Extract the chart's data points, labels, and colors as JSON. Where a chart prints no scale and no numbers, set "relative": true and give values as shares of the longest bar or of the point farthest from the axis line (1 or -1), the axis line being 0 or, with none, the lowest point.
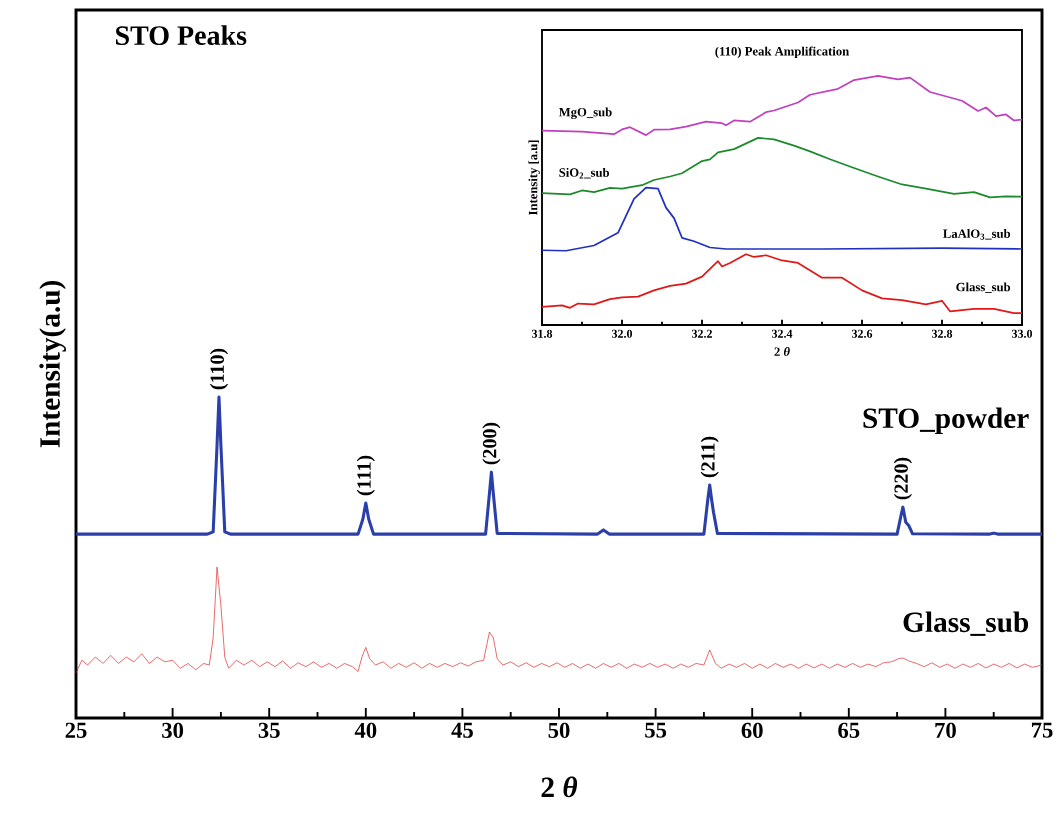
{
  "chart_data": [
    {
      "type": "line",
      "xlabel": "2 *θ*",
      "ylabel": "Intensity(a.u)",
      "relative": true,
      "tick_labels": "x",
      "xlim": [
        25,
        75
      ],
      "xticks": [
        25,
        30,
        35,
        40,
        45,
        50,
        55,
        60,
        65,
        70,
        75
      ],
      "series": [
        {
          "name": "STO_powder",
          "color": "#2b3fa8",
          "x": [
            25,
            31.8,
            32.1,
            32.3,
            32.4,
            32.5,
            32.7,
            33,
            39.6,
            39.85,
            40.0,
            40.15,
            40.4,
            46.2,
            46.4,
            46.5,
            46.6,
            46.8,
            52.0,
            52.3,
            52.6,
            57.5,
            57.7,
            57.8,
            57.9,
            58.0,
            58.2,
            67.5,
            67.7,
            67.8,
            67.95,
            68.1,
            68.3,
            72.3,
            72.5,
            72.7,
            75
          ],
          "values": [
            0.573,
            0.573,
            0.58,
            0.85,
            1.0,
            0.85,
            0.58,
            0.573,
            0.573,
            0.62,
            0.67,
            0.62,
            0.573,
            0.573,
            0.7,
            0.766,
            0.7,
            0.575,
            0.573,
            0.586,
            0.573,
            0.573,
            0.68,
            0.726,
            0.68,
            0.64,
            0.575,
            0.573,
            0.63,
            0.657,
            0.61,
            0.6,
            0.574,
            0.573,
            0.576,
            0.573,
            0.573
          ]
        },
        {
          "name": "Glass_sub",
          "color": "#e02020",
          "x": [
            25,
            25.3,
            25.6,
            26,
            26.4,
            26.8,
            27.2,
            27.6,
            28,
            28.4,
            28.8,
            29.2,
            29.6,
            30,
            30.4,
            30.8,
            31.2,
            31.6,
            31.9,
            32.1,
            32.3,
            32.5,
            32.7,
            32.9,
            33.3,
            33.7,
            34.1,
            34.5,
            34.9,
            35.3,
            35.7,
            36.1,
            36.5,
            36.9,
            37.3,
            37.7,
            38.1,
            38.5,
            38.9,
            39.3,
            39.6,
            39.8,
            40.0,
            40.2,
            40.5,
            40.9,
            41.3,
            41.7,
            42.1,
            42.5,
            42.9,
            43.3,
            43.7,
            44.1,
            44.5,
            44.9,
            45.3,
            45.7,
            46.1,
            46.4,
            46.6,
            46.8,
            47.1,
            47.5,
            47.9,
            48.3,
            48.7,
            49.1,
            49.5,
            49.9,
            50.3,
            50.7,
            51.1,
            51.5,
            51.9,
            52.3,
            52.7,
            53.1,
            53.5,
            53.9,
            54.3,
            54.7,
            55.1,
            55.5,
            55.9,
            56.3,
            56.7,
            57.1,
            57.5,
            57.8,
            58.1,
            58.4,
            58.8,
            59.2,
            59.6,
            60,
            60.4,
            60.8,
            61.2,
            61.6,
            62,
            62.4,
            62.8,
            63.2,
            63.6,
            64,
            64.4,
            64.8,
            65.2,
            65.6,
            66,
            66.4,
            66.8,
            67.2,
            67.6,
            67.8,
            68.1,
            68.5,
            68.9,
            69.3,
            69.7,
            70.1,
            70.5,
            70.9,
            71.3,
            71.7,
            72.1,
            72.5,
            72.9,
            73.3,
            73.7,
            74.1,
            74.5,
            75
          ],
          "values": [
            0.14,
            0.18,
            0.165,
            0.19,
            0.17,
            0.195,
            0.17,
            0.19,
            0.175,
            0.2,
            0.17,
            0.19,
            0.175,
            0.18,
            0.155,
            0.17,
            0.15,
            0.17,
            0.165,
            0.25,
            0.47,
            0.35,
            0.19,
            0.155,
            0.18,
            0.165,
            0.18,
            0.16,
            0.175,
            0.16,
            0.178,
            0.155,
            0.172,
            0.16,
            0.175,
            0.158,
            0.17,
            0.155,
            0.17,
            0.16,
            0.145,
            0.19,
            0.22,
            0.185,
            0.165,
            0.175,
            0.155,
            0.17,
            0.158,
            0.172,
            0.155,
            0.17,
            0.158,
            0.17,
            0.16,
            0.172,
            0.162,
            0.175,
            0.18,
            0.268,
            0.25,
            0.185,
            0.165,
            0.175,
            0.16,
            0.172,
            0.158,
            0.17,
            0.16,
            0.172,
            0.158,
            0.17,
            0.155,
            0.168,
            0.155,
            0.17,
            0.158,
            0.17,
            0.155,
            0.168,
            0.158,
            0.17,
            0.158,
            0.168,
            0.155,
            0.168,
            0.158,
            0.17,
            0.165,
            0.212,
            0.17,
            0.155,
            0.168,
            0.158,
            0.17,
            0.155,
            0.168,
            0.155,
            0.17,
            0.158,
            0.168,
            0.155,
            0.168,
            0.156,
            0.168,
            0.155,
            0.168,
            0.158,
            0.17,
            0.158,
            0.168,
            0.16,
            0.172,
            0.175,
            0.185,
            0.187,
            0.178,
            0.17,
            0.16,
            0.172,
            0.158,
            0.168,
            0.155,
            0.168,
            0.158,
            0.17,
            0.156,
            0.168,
            0.158,
            0.17,
            0.156,
            0.168,
            0.158,
            0.165
          ]
        }
      ],
      "annotations": [
        "STO Peaks",
        {
          "text": "(110)",
          "x": 32.4,
          "y": 1.0
        },
        {
          "text": "(111)",
          "x": 40.0,
          "y": 0.67
        },
        {
          "text": "(200)",
          "x": 46.5,
          "y": 0.766
        },
        {
          "text": "(211)",
          "x": 57.8,
          "y": 0.726
        },
        {
          "text": "(220)",
          "x": 67.8,
          "y": 0.657
        }
      ]
    },
    {
      "type": "line",
      "title": "(110) Peak Amplification",
      "xlabel": "2 *θ*",
      "ylabel": "Intensity [a.u]",
      "relative": true,
      "tick_labels": "x",
      "xlim": [
        31.8,
        33.0
      ],
      "xticks": [
        31.8,
        {
          "value": 32,
          "label": "32.0"
        },
        32.2,
        32.4,
        32.6,
        32.8,
        {
          "value": 33,
          "label": "33.0"
        }
      ],
      "series": [
        {
          "name": "MgO_sub",
          "color": "#c040c0",
          "x": [
            31.8,
            31.9,
            31.98,
            32.0,
            32.02,
            32.06,
            32.08,
            32.12,
            32.16,
            32.21,
            32.25,
            32.26,
            32.28,
            32.32,
            32.36,
            32.38,
            32.44,
            32.47,
            32.54,
            32.58,
            32.64,
            32.69,
            32.72,
            32.77,
            32.85,
            32.89,
            32.91,
            32.935,
            32.96,
            32.98,
            33.0
          ],
          "values": [
            0.78,
            0.776,
            0.766,
            0.785,
            0.794,
            0.762,
            0.784,
            0.785,
            0.796,
            0.816,
            0.81,
            0.802,
            0.821,
            0.816,
            0.854,
            0.861,
            0.893,
            0.924,
            0.948,
            0.983,
            1.0,
            0.986,
            0.993,
            0.935,
            0.9,
            0.859,
            0.873,
            0.838,
            0.845,
            0.821,
            0.824
          ]
        },
        {
          "name": "SiO$_{2}$_sub",
          "color": "#1a8a2a",
          "x": [
            31.8,
            31.87,
            31.9,
            31.93,
            31.97,
            32.0,
            32.05,
            32.08,
            32.12,
            32.15,
            32.2,
            32.22,
            32.24,
            32.28,
            32.34,
            32.38,
            32.43,
            32.47,
            32.52,
            32.58,
            32.64,
            32.7,
            32.76,
            32.83,
            32.88,
            32.92,
            32.96,
            33.0
          ],
          "values": [
            0.529,
            0.524,
            0.54,
            0.533,
            0.55,
            0.547,
            0.561,
            0.582,
            0.596,
            0.609,
            0.658,
            0.665,
            0.693,
            0.706,
            0.751,
            0.745,
            0.72,
            0.697,
            0.665,
            0.63,
            0.596,
            0.564,
            0.547,
            0.526,
            0.533,
            0.512,
            0.516,
            0.515
          ]
        },
        {
          "name": "LaAlO$_{3}$_sub",
          "color": "#2030c0",
          "x": [
            31.8,
            31.86,
            31.93,
            31.99,
            32.03,
            32.06,
            32.09,
            32.11,
            32.13,
            32.15,
            32.18,
            32.22,
            32.26,
            32.5,
            32.8,
            33.0
          ],
          "values": [
            0.3,
            0.298,
            0.319,
            0.37,
            0.506,
            0.551,
            0.547,
            0.471,
            0.429,
            0.35,
            0.336,
            0.311,
            0.305,
            0.305,
            0.309,
            0.305
          ]
        },
        {
          "name": "Glass_sub",
          "color": "#e01818",
          "x": [
            31.8,
            31.85,
            31.87,
            31.89,
            31.93,
            31.97,
            32.0,
            32.04,
            32.08,
            32.12,
            32.16,
            32.2,
            32.24,
            32.25,
            32.27,
            32.31,
            32.33,
            32.36,
            32.4,
            32.44,
            32.5,
            32.55,
            32.6,
            32.65,
            32.7,
            32.76,
            32.8,
            32.82,
            32.88,
            32.93,
            32.98,
            33.0
          ],
          "values": [
            0.073,
            0.079,
            0.069,
            0.086,
            0.083,
            0.104,
            0.111,
            0.114,
            0.139,
            0.157,
            0.166,
            0.194,
            0.256,
            0.235,
            0.249,
            0.284,
            0.273,
            0.28,
            0.259,
            0.249,
            0.19,
            0.19,
            0.139,
            0.107,
            0.1,
            0.083,
            0.097,
            0.055,
            0.065,
            0.065,
            0.048,
            0.048
          ]
        }
      ]
    }
  ]
}
